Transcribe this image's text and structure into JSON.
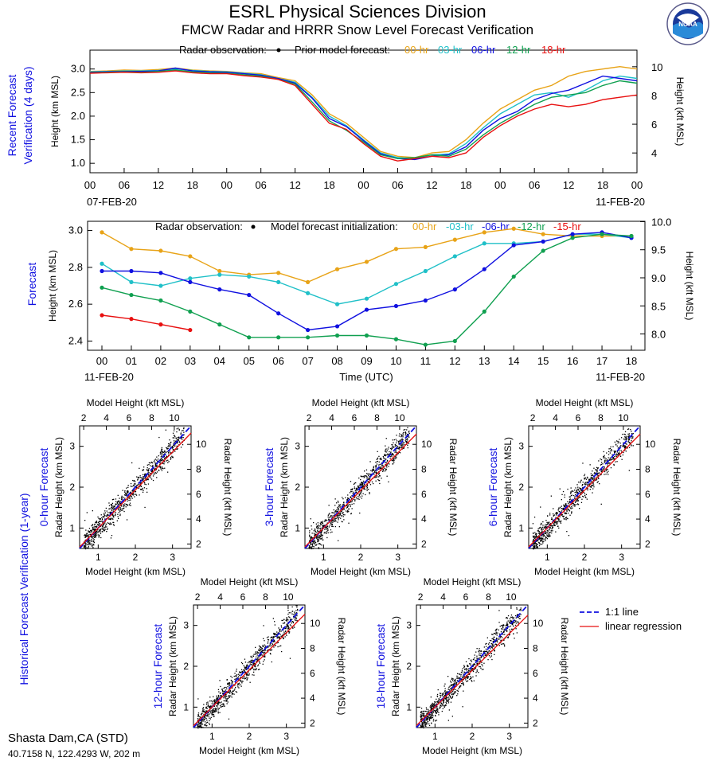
{
  "header": {
    "title": "ESRL Physical Sciences Division",
    "subtitle": "FMCW Radar and HRRR Snow Level Forecast Verification",
    "logo_text": "NOAA"
  },
  "station": {
    "name": "Shasta Dam,CA (STD)",
    "location": "40.7158 N, 122.4293 W, 202 m"
  },
  "colors": {
    "obs": "#000000",
    "f00": "#e8a317",
    "f03": "#20c0c8",
    "f06": "#1010e0",
    "f12": "#10a050",
    "f15": "#e81010",
    "f18": "#e81010",
    "side_label": "#1010e0"
  },
  "chart_data": [
    {
      "id": "recent",
      "type": "line",
      "side_label": [
        "Recent Forecast",
        "Verification (4 days)"
      ],
      "ylabel": "Height (km MSL)",
      "ylabel_right": "Height (kft MSL)",
      "ylim": [
        0.8,
        3.4
      ],
      "yticks": [
        "1.0",
        "1.5",
        "2.0",
        "2.5",
        "3.0"
      ],
      "yticks_right": [
        "4",
        "6",
        "8",
        "10"
      ],
      "xticks": [
        "00",
        "06",
        "12",
        "18",
        "00",
        "06",
        "12",
        "18",
        "00",
        "06",
        "12",
        "18",
        "00",
        "06",
        "12",
        "18",
        "00"
      ],
      "date_left": "07-FEB-20",
      "date_right": "11-FEB-20",
      "legend_obs": "Radar observation:",
      "legend_model": "Prior model forecast:",
      "x": [
        0,
        3,
        6,
        9,
        12,
        15,
        18,
        21,
        24,
        27,
        30,
        33,
        36,
        39,
        42,
        45,
        48,
        51,
        54,
        57,
        60,
        63,
        66,
        69,
        72,
        75,
        78,
        81,
        84,
        87,
        90,
        93,
        96
      ],
      "series": [
        {
          "name": "00-hr",
          "color_key": "f00",
          "values": [
            2.95,
            2.96,
            2.98,
            2.97,
            2.99,
            3.02,
            2.98,
            2.96,
            2.95,
            2.92,
            2.9,
            2.82,
            2.75,
            2.45,
            2.05,
            1.85,
            1.55,
            1.25,
            1.15,
            1.12,
            1.22,
            1.25,
            1.5,
            1.85,
            2.15,
            2.35,
            2.55,
            2.65,
            2.85,
            2.95,
            3.0,
            3.05,
            3.0
          ]
        },
        {
          "name": "03-hr",
          "color_key": "f03",
          "values": [
            2.94,
            2.95,
            2.96,
            2.96,
            2.97,
            3.0,
            2.97,
            2.95,
            2.94,
            2.91,
            2.88,
            2.8,
            2.72,
            2.4,
            2.0,
            1.8,
            1.5,
            1.22,
            1.12,
            1.1,
            1.18,
            1.2,
            1.42,
            1.75,
            2.05,
            2.25,
            2.45,
            2.5,
            2.4,
            2.55,
            2.75,
            2.85,
            2.8
          ]
        },
        {
          "name": "06-hr",
          "color_key": "f06",
          "values": [
            2.93,
            2.94,
            2.95,
            2.95,
            2.96,
            3.02,
            2.96,
            2.94,
            2.93,
            2.9,
            2.87,
            2.8,
            2.7,
            2.38,
            1.95,
            1.78,
            1.48,
            1.2,
            1.1,
            1.08,
            1.15,
            1.18,
            1.35,
            1.7,
            1.95,
            2.1,
            2.35,
            2.48,
            2.55,
            2.7,
            2.85,
            2.8,
            2.75
          ]
        },
        {
          "name": "12-hr",
          "color_key": "f12",
          "values": [
            2.92,
            2.93,
            2.94,
            2.93,
            2.95,
            2.98,
            2.94,
            2.92,
            2.91,
            2.88,
            2.85,
            2.78,
            2.68,
            2.3,
            1.9,
            1.7,
            1.45,
            1.18,
            1.1,
            1.12,
            1.18,
            1.15,
            1.3,
            1.6,
            1.85,
            2.05,
            2.25,
            2.4,
            2.45,
            2.5,
            2.65,
            2.75,
            2.7
          ]
        },
        {
          "name": "18-hr",
          "color_key": "f18",
          "values": [
            2.91,
            2.92,
            2.93,
            2.92,
            2.93,
            2.96,
            2.92,
            2.9,
            2.9,
            2.86,
            2.83,
            2.78,
            2.65,
            2.25,
            1.85,
            1.72,
            1.42,
            1.15,
            1.05,
            1.1,
            1.15,
            1.12,
            1.22,
            1.55,
            1.8,
            2.0,
            2.15,
            2.25,
            2.2,
            2.25,
            2.35,
            2.4,
            2.45
          ]
        }
      ]
    },
    {
      "id": "forecast",
      "type": "line",
      "side_label": [
        "Forecast"
      ],
      "ylabel": "Height (km MSL)",
      "ylabel_right": "Height (kft MSL)",
      "xlabel": "Time (UTC)",
      "ylim": [
        2.35,
        3.05
      ],
      "yticks": [
        "2.4",
        "2.6",
        "2.8",
        "3.0"
      ],
      "yticks_right": [
        "8.0",
        "8.5",
        "9.0",
        "9.5",
        "10.0"
      ],
      "categories": [
        "00",
        "01",
        "02",
        "03",
        "04",
        "05",
        "06",
        "07",
        "08",
        "09",
        "10",
        "11",
        "12",
        "13",
        "14",
        "15",
        "16",
        "17",
        "18"
      ],
      "date_left": "11-FEB-20",
      "date_right": "11-FEB-20",
      "legend_obs": "Radar observation:",
      "legend_model": "Model forecast initialization:",
      "series": [
        {
          "name": "00-hr",
          "color_key": "f00",
          "values": [
            2.99,
            2.9,
            2.89,
            2.86,
            2.78,
            2.76,
            2.77,
            2.72,
            2.79,
            2.83,
            2.9,
            2.91,
            2.95,
            2.99,
            3.01,
            2.98,
            2.97,
            2.97,
            2.97
          ]
        },
        {
          "name": "-03-hr",
          "color_key": "f03",
          "values": [
            2.82,
            2.72,
            2.7,
            2.74,
            2.76,
            2.75,
            2.72,
            2.66,
            2.6,
            2.63,
            2.71,
            2.78,
            2.86,
            2.93,
            2.93,
            2.94,
            2.98,
            2.98,
            2.96
          ]
        },
        {
          "name": "-06-hr",
          "color_key": "f06",
          "values": [
            2.78,
            2.78,
            2.77,
            2.72,
            2.68,
            2.65,
            2.55,
            2.46,
            2.48,
            2.57,
            2.59,
            2.62,
            2.68,
            2.79,
            2.92,
            2.94,
            2.98,
            2.99,
            2.96
          ]
        },
        {
          "name": "-12-hr",
          "color_key": "f12",
          "values": [
            2.69,
            2.65,
            2.62,
            2.56,
            2.49,
            2.42,
            2.42,
            2.42,
            2.43,
            2.43,
            2.41,
            2.38,
            2.4,
            2.56,
            2.75,
            2.89,
            2.96,
            2.98,
            2.97
          ]
        },
        {
          "name": "-15-hr",
          "color_key": "f15",
          "values": [
            2.54,
            2.52,
            2.49,
            2.46,
            null,
            null,
            null,
            null,
            null,
            null,
            null,
            null,
            null,
            null,
            null,
            null,
            null,
            null,
            null
          ]
        }
      ]
    },
    {
      "id": "historical",
      "type": "scatter",
      "side_label": [
        "Historical Forecast Verification (1-year)"
      ],
      "xlabel": "Model Height (km MSL)",
      "xlabel_top": "Model Height (kft MSL)",
      "ylabel": "Radar Height (km MSL)",
      "ylabel_right": "Radar Height (kft MSL)",
      "xlim": [
        0.5,
        3.5
      ],
      "ylim": [
        0.5,
        3.5
      ],
      "xticks": [
        "1",
        "2",
        "3"
      ],
      "xticks_top": [
        "2",
        "4",
        "6",
        "8",
        "10"
      ],
      "yticks": [
        "1",
        "2",
        "3"
      ],
      "yticks_right": [
        "2",
        "4",
        "6",
        "8",
        "10"
      ],
      "legend": [
        "1:1 line",
        "linear regression"
      ],
      "panels": [
        {
          "label": "0-hour Forecast",
          "regression": {
            "slope": 0.93,
            "intercept": 0.07
          }
        },
        {
          "label": "3-hour Forecast",
          "regression": {
            "slope": 0.92,
            "intercept": 0.08
          }
        },
        {
          "label": "6-hour Forecast",
          "regression": {
            "slope": 0.92,
            "intercept": 0.08
          }
        },
        {
          "label": "12-hour Forecast",
          "regression": {
            "slope": 0.91,
            "intercept": 0.09
          }
        },
        {
          "label": "18-hour Forecast",
          "regression": {
            "slope": 0.9,
            "intercept": 0.1
          }
        }
      ]
    }
  ]
}
